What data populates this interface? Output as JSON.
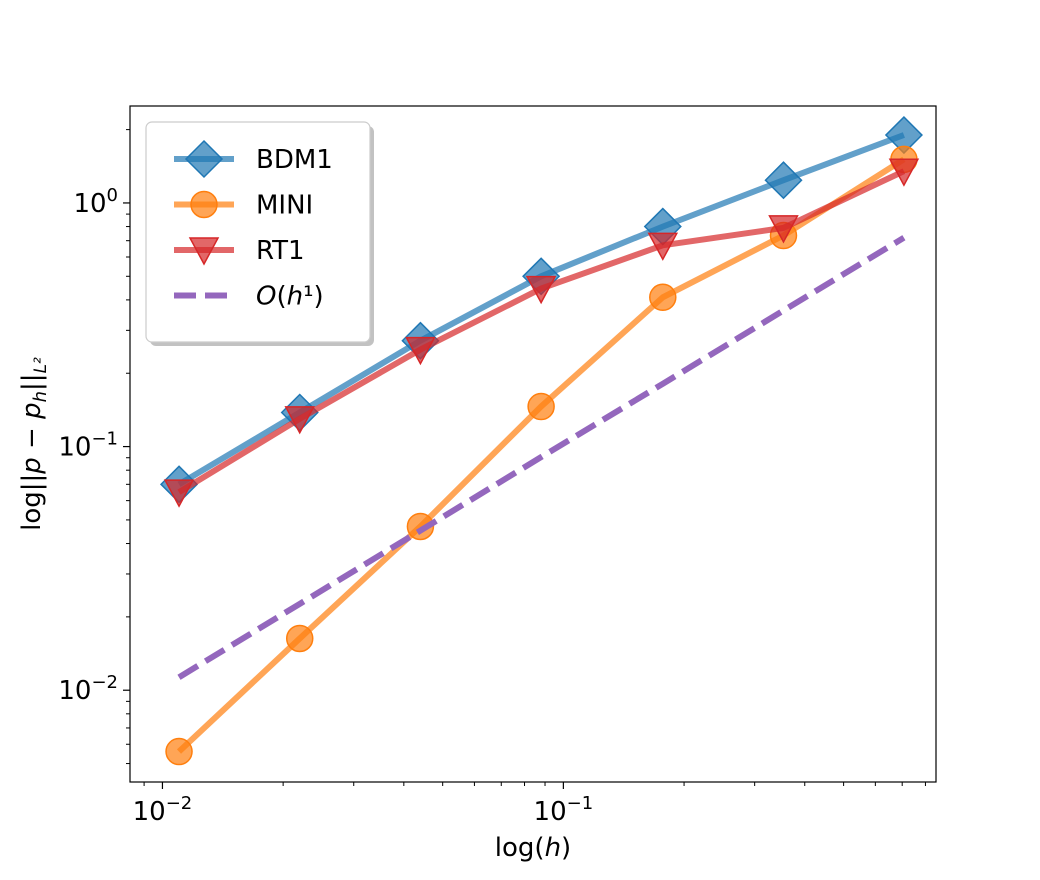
{
  "chart_data": {
    "type": "line",
    "title": "",
    "xlabel": "log(h)",
    "ylabel": "log||p − p_h||_{L²}",
    "xscale": "log",
    "yscale": "log",
    "xlim": [
      0.0083,
      0.85
    ],
    "ylim": [
      0.0042,
      2.5
    ],
    "x_ticks": [
      {
        "value": 0.01,
        "base": "10",
        "exp": "−2"
      },
      {
        "value": 0.1,
        "base": "10",
        "exp": "−1"
      }
    ],
    "y_ticks": [
      {
        "value": 0.01,
        "base": "10",
        "exp": "−2"
      },
      {
        "value": 0.1,
        "base": "10",
        "exp": "−1"
      },
      {
        "value": 1,
        "base": "10",
        "exp": "0"
      }
    ],
    "grid": false,
    "legend_position": "top-left",
    "x": [
      0.011,
      0.022,
      0.044,
      0.088,
      0.177,
      0.354,
      0.707
    ],
    "series": [
      {
        "name": "BDM1",
        "color": "#1f77b4",
        "marker": "diamond",
        "style": "solid",
        "values": [
          0.07,
          0.138,
          0.272,
          0.5,
          0.8,
          1.24,
          1.9
        ]
      },
      {
        "name": "MINI",
        "color": "#ff7f0e",
        "marker": "circle",
        "style": "solid",
        "values": [
          0.0056,
          0.0163,
          0.047,
          0.146,
          0.41,
          0.735,
          1.51
        ]
      },
      {
        "name": "RT1",
        "color": "#d62728",
        "marker": "triangle-down",
        "style": "solid",
        "values": [
          0.065,
          0.13,
          0.25,
          0.445,
          0.67,
          0.79,
          1.35
        ]
      },
      {
        "name": "O(h¹)",
        "color": "#9467bd",
        "marker": "none",
        "style": "dashed",
        "values": [
          0.0113,
          0.0226,
          0.0452,
          0.0905,
          0.181,
          0.362,
          0.72
        ]
      }
    ]
  }
}
